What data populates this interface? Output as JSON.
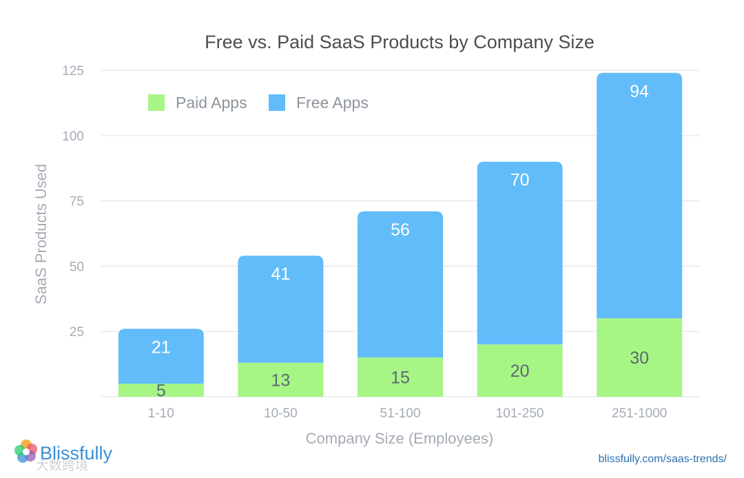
{
  "chart_data": {
    "type": "bar",
    "stacked": true,
    "title": "Free vs. Paid SaaS Products by Company Size",
    "xlabel": "Company Size (Employees)",
    "ylabel": "SaaS Products Used",
    "ylim": [
      0,
      125
    ],
    "yticks": [
      25,
      50,
      75,
      100,
      125
    ],
    "categories": [
      "1-10",
      "10-50",
      "51-100",
      "101-250",
      "251-1000"
    ],
    "series": [
      {
        "name": "Paid Apps",
        "color": "#a6f585",
        "values": [
          5,
          13,
          15,
          20,
          30
        ]
      },
      {
        "name": "Free Apps",
        "color": "#62bcfa",
        "values": [
          21,
          41,
          56,
          70,
          94
        ]
      }
    ],
    "grid": true,
    "legend_position": "top-left"
  },
  "footer": {
    "logo_text": "Blissfully",
    "url": "blissfully.com/saas-trends/",
    "watermark": "大数跨境"
  }
}
